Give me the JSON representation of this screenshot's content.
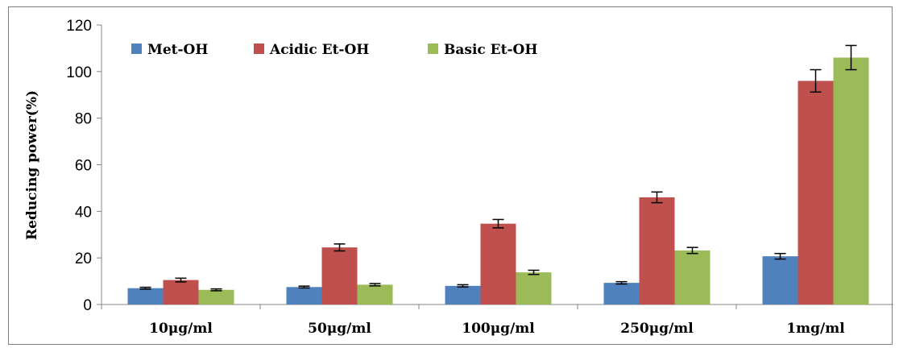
{
  "chart_data": {
    "type": "bar",
    "title": "",
    "xlabel": "",
    "ylabel": "Reducing power(%)",
    "ylim": [
      0,
      120
    ],
    "yticks": [
      0,
      20,
      40,
      60,
      80,
      100,
      120
    ],
    "grid": false,
    "legend_position": "top-left",
    "categories": [
      "10μg/ml",
      "50μg/ml",
      "100μg/ml",
      "250μg/ml",
      "1mg/ml"
    ],
    "series": [
      {
        "name": "Met-OH",
        "color": "#4f81bd",
        "values": [
          7,
          7.5,
          8,
          9.3,
          20.7
        ],
        "errors": [
          0.4,
          0.4,
          0.5,
          0.5,
          1.2
        ]
      },
      {
        "name": "Acidic Et-OH",
        "color": "#c0504d",
        "values": [
          10.5,
          24.5,
          34.7,
          46,
          96
        ],
        "errors": [
          0.8,
          1.5,
          1.8,
          2.3,
          4.8
        ]
      },
      {
        "name": "Basic Et-OH",
        "color": "#9bbb59",
        "values": [
          6.3,
          8.5,
          13.8,
          23.2,
          106
        ],
        "errors": [
          0.4,
          0.5,
          0.9,
          1.3,
          5.2
        ]
      }
    ]
  }
}
